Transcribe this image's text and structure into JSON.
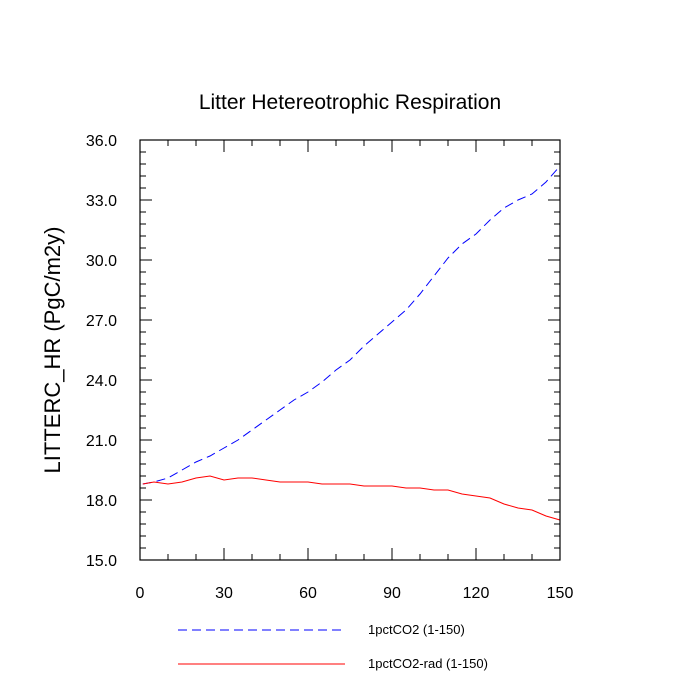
{
  "chart_data": {
    "type": "line",
    "title": "Litter Hetereotrophic Respiration",
    "xlabel": "",
    "ylabel": "LITTERC_HR  (PgC/m2y)",
    "xlim": [
      0,
      150
    ],
    "ylim": [
      15.0,
      36.0
    ],
    "xticks": [
      0,
      30,
      60,
      90,
      120,
      150
    ],
    "xtick_labels": [
      "0",
      "30",
      "60",
      "90",
      "120",
      "150"
    ],
    "yticks": [
      15.0,
      18.0,
      21.0,
      24.0,
      27.0,
      30.0,
      33.0,
      36.0
    ],
    "ytick_labels": [
      "15.0",
      "18.0",
      "21.0",
      "24.0",
      "27.0",
      "30.0",
      "33.0",
      "36.0"
    ],
    "grid": false,
    "legend_position": "bottom",
    "series": [
      {
        "name": "1pctCO2 (1-150)",
        "color": "#0000ff",
        "style": "dashed",
        "x": [
          1,
          5,
          10,
          15,
          20,
          25,
          30,
          35,
          40,
          45,
          50,
          55,
          60,
          65,
          70,
          75,
          80,
          85,
          90,
          95,
          100,
          105,
          110,
          115,
          120,
          125,
          130,
          135,
          140,
          145,
          150
        ],
        "y": [
          18.8,
          18.9,
          19.1,
          19.5,
          19.9,
          20.2,
          20.6,
          21.0,
          21.5,
          22.0,
          22.5,
          23.0,
          23.4,
          23.9,
          24.5,
          25.0,
          25.7,
          26.3,
          26.9,
          27.5,
          28.3,
          29.2,
          30.1,
          30.8,
          31.3,
          32.0,
          32.6,
          33.0,
          33.3,
          33.9,
          34.7
        ]
      },
      {
        "name": "1pctCO2-rad (1-150)",
        "color": "#ff0000",
        "style": "solid",
        "x": [
          1,
          5,
          10,
          15,
          20,
          25,
          30,
          35,
          40,
          45,
          50,
          55,
          60,
          65,
          70,
          75,
          80,
          85,
          90,
          95,
          100,
          105,
          110,
          115,
          120,
          125,
          130,
          135,
          140,
          145,
          150
        ],
        "y": [
          18.8,
          18.9,
          18.8,
          18.9,
          19.1,
          19.2,
          19.0,
          19.1,
          19.1,
          19.0,
          18.9,
          18.9,
          18.9,
          18.8,
          18.8,
          18.8,
          18.7,
          18.7,
          18.7,
          18.6,
          18.6,
          18.5,
          18.5,
          18.3,
          18.2,
          18.1,
          17.8,
          17.6,
          17.5,
          17.2,
          17.0
        ]
      }
    ]
  }
}
